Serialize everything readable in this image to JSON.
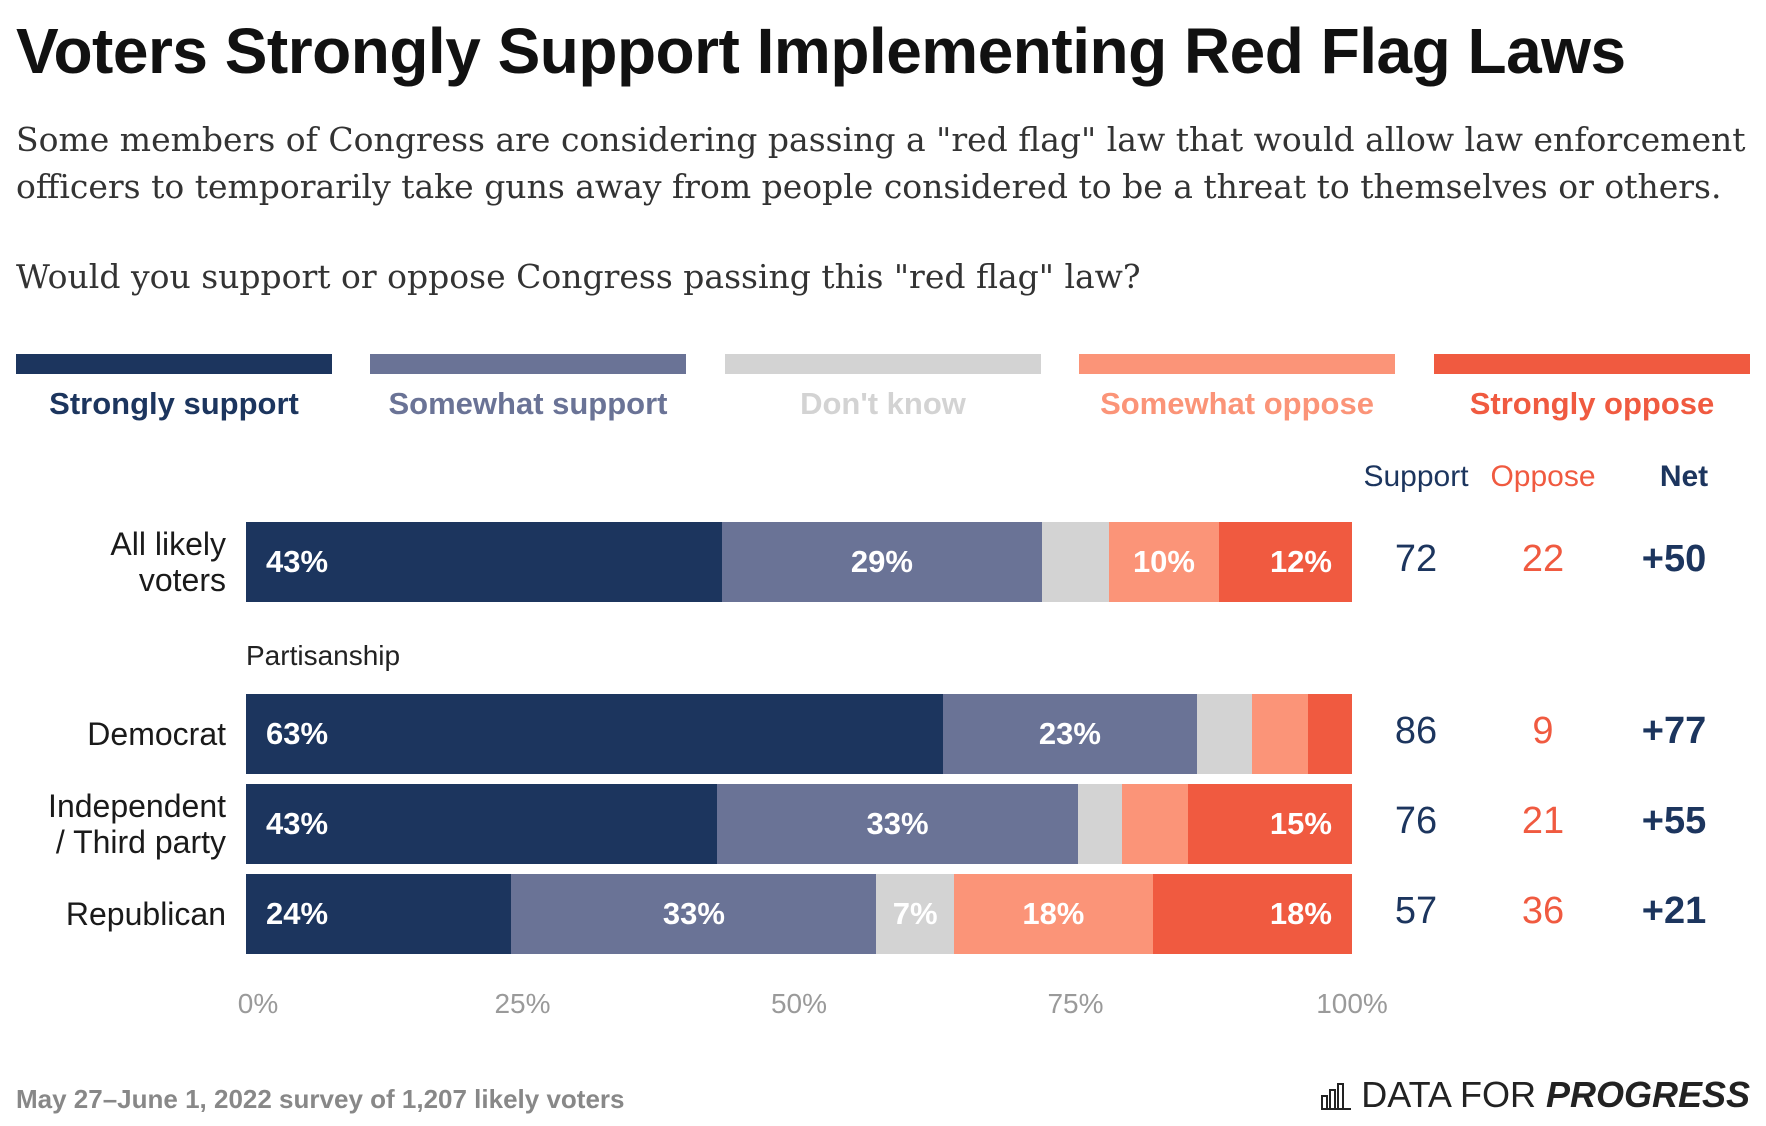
{
  "title": "Voters Strongly Support Implementing Red Flag Laws",
  "subtitle": "Some members of Congress are considering passing a \"red flag\" law that would allow law enforcement officers to temporarily take guns away from people considered to be a threat to themselves or others.",
  "question": "Would you support or oppose Congress passing this \"red flag\" law?",
  "colors": {
    "strongly_support": "#1c355e",
    "somewhat_support": "#6a7396",
    "dont_know": "#d3d3d3",
    "somewhat_oppose": "#fb9478",
    "strongly_oppose": "#f05a40"
  },
  "legend": [
    {
      "label": "Strongly support",
      "color": "#1c355e",
      "text_color": "#1c355e"
    },
    {
      "label": "Somewhat support",
      "color": "#6a7396",
      "text_color": "#6a7396"
    },
    {
      "label": "Don't know",
      "color": "#d3d3d3",
      "text_color": "#d3d3d3"
    },
    {
      "label": "Somewhat oppose",
      "color": "#fb9478",
      "text_color": "#fb9478"
    },
    {
      "label": "Strongly oppose",
      "color": "#f05a40",
      "text_color": "#f05a40"
    }
  ],
  "columns": {
    "support": "Support",
    "oppose": "Oppose",
    "net": "Net"
  },
  "group_label": "Partisanship",
  "chart_data": {
    "type": "bar",
    "orientation": "horizontal",
    "stacked": true,
    "categories": [
      "All likely voters",
      "Democrat",
      "Independent / Third party",
      "Republican"
    ],
    "series": [
      {
        "name": "Strongly support",
        "values": [
          43,
          63,
          43,
          24
        ]
      },
      {
        "name": "Somewhat support",
        "values": [
          29,
          23,
          33,
          33
        ]
      },
      {
        "name": "Don't know",
        "values": [
          6,
          5,
          4,
          7
        ]
      },
      {
        "name": "Somewhat oppose",
        "values": [
          10,
          5,
          6,
          18
        ]
      },
      {
        "name": "Strongly oppose",
        "values": [
          12,
          4,
          15,
          18
        ]
      }
    ],
    "data_labels": [
      [
        "43%",
        "29%",
        "",
        "10%",
        "12%"
      ],
      [
        "63%",
        "23%",
        "",
        "",
        ""
      ],
      [
        "43%",
        "33%",
        "",
        "",
        "15%"
      ],
      [
        "24%",
        "33%",
        "7%",
        "18%",
        "18%"
      ]
    ],
    "support": [
      72,
      86,
      76,
      57
    ],
    "oppose": [
      22,
      9,
      21,
      36
    ],
    "net": [
      "+50",
      "+77",
      "+55",
      "+21"
    ],
    "xlim": [
      0,
      100
    ],
    "xticks": [
      "0%",
      "25%",
      "50%",
      "75%",
      "100%"
    ],
    "legend_position": "top"
  },
  "footer": "May 27–June 1, 2022 survey of 1,207 likely voters",
  "logo": {
    "text_regular": "DATA FOR",
    "text_bold": "PROGRESS"
  }
}
